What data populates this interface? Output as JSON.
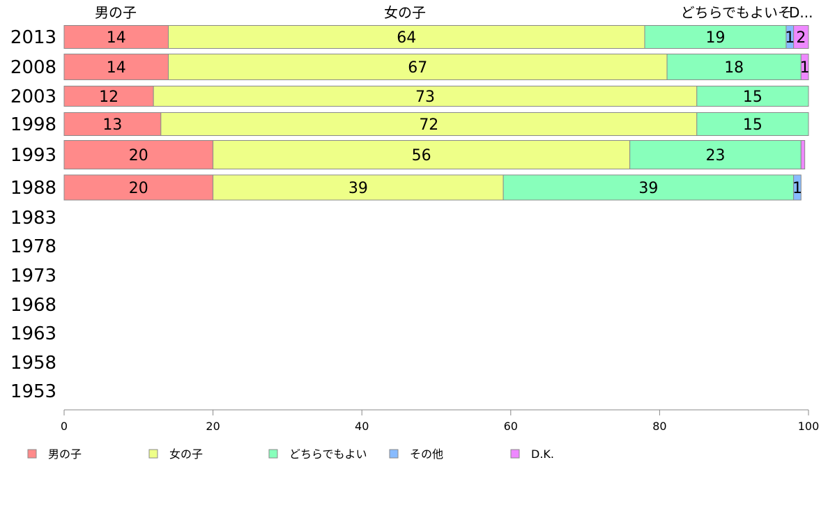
{
  "chart_data": {
    "type": "bar",
    "orientation": "horizontal",
    "stacked": true,
    "categories": [
      "2013",
      "2008",
      "2003",
      "1998",
      "1993",
      "1988",
      "1983",
      "1978",
      "1973",
      "1968",
      "1963",
      "1958",
      "1953"
    ],
    "series": [
      {
        "name": "男の子",
        "color": "#ff8a8a",
        "values": [
          14,
          14,
          12,
          13,
          20,
          20,
          null,
          null,
          null,
          null,
          null,
          null,
          null
        ]
      },
      {
        "name": "女の子",
        "color": "#eeff88",
        "values": [
          64,
          67,
          73,
          72,
          56,
          39,
          null,
          null,
          null,
          null,
          null,
          null,
          null
        ]
      },
      {
        "name": "どちらでもよい",
        "color": "#88ffbb",
        "values": [
          19,
          18,
          15,
          15,
          23,
          39,
          null,
          null,
          null,
          null,
          null,
          null,
          null
        ]
      },
      {
        "name": "その他",
        "color": "#88bbff",
        "values": [
          1,
          0,
          0,
          0,
          0,
          1,
          null,
          null,
          null,
          null,
          null,
          null,
          null
        ]
      },
      {
        "name": "D.K.",
        "color": "#ee88ff",
        "values": [
          2,
          1,
          0,
          0,
          0.5,
          0,
          null,
          null,
          null,
          null,
          null,
          null,
          null
        ]
      }
    ],
    "value_labels": [
      [
        "14",
        "64",
        "19",
        "1",
        "2"
      ],
      [
        "14",
        "67",
        "18",
        "",
        "1"
      ],
      [
        "12",
        "73",
        "15",
        "",
        ""
      ],
      [
        "13",
        "72",
        "15",
        "",
        ""
      ],
      [
        "20",
        "56",
        "23",
        "",
        ""
      ],
      [
        "20",
        "39",
        "39",
        "1",
        ""
      ]
    ],
    "top_labels": [
      "男の子",
      "女の子",
      "どちらでもよい",
      "その他",
      "D.K."
    ],
    "top_labels_display": [
      "男の子",
      "女の子",
      "どちらでもよいそ",
      "D..."
    ],
    "xlim": [
      0,
      100
    ],
    "xticks": [
      "0",
      "20",
      "40",
      "60",
      "80",
      "100"
    ],
    "grid": false,
    "legend_placement": "bottom"
  }
}
